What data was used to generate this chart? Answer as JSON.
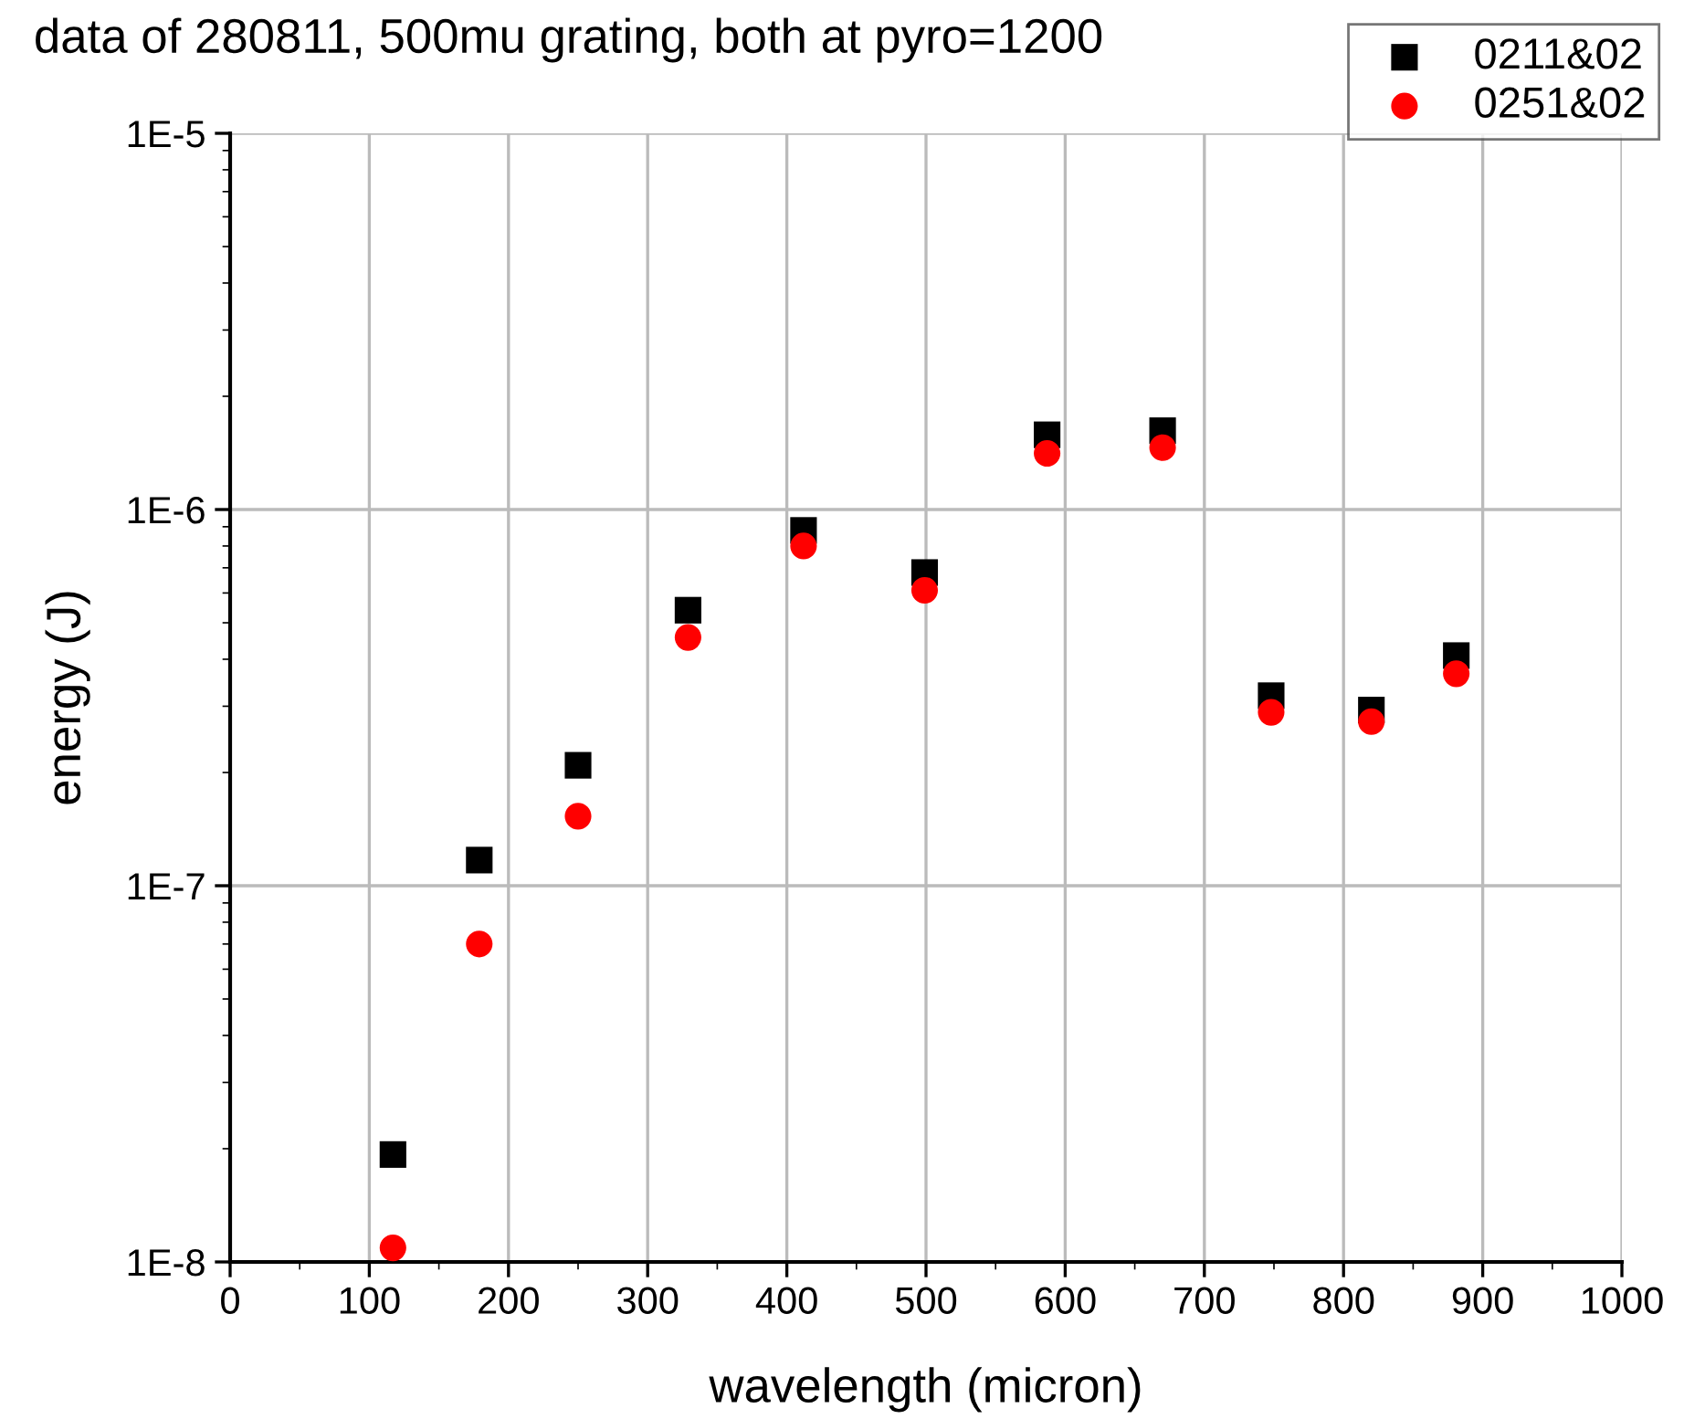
{
  "chart_data": {
    "type": "scatter",
    "title": "data of 280811, 500mu grating, both at pyro=1200",
    "xlabel": "wavelength (micron)",
    "ylabel": "energy (J)",
    "x": [
      117,
      179,
      250,
      329,
      412,
      499,
      587,
      670,
      748,
      820,
      881
    ],
    "series": [
      {
        "name": "0211&02",
        "color": "#000000",
        "marker": "square",
        "values": [
          1.93e-08,
          1.17e-07,
          2.09e-07,
          5.4e-07,
          8.8e-07,
          6.8e-07,
          1.58e-06,
          1.62e-06,
          3.2e-07,
          2.93e-07,
          4.09e-07
        ]
      },
      {
        "name": "0251&02",
        "color": "#ff0000",
        "marker": "circle",
        "values": [
          1.09e-08,
          7e-08,
          1.53e-07,
          4.57e-07,
          8e-07,
          6.1e-07,
          1.41e-06,
          1.46e-06,
          2.89e-07,
          2.73e-07,
          3.66e-07
        ]
      }
    ],
    "log": "y",
    "xlim": [
      0,
      1000
    ],
    "xticks": [
      0,
      100,
      200,
      300,
      400,
      500,
      600,
      700,
      800,
      900,
      1000
    ],
    "ylim": [
      1e-08,
      1e-05
    ],
    "yticks": [
      {
        "value": 1e-08,
        "label": "1E-8"
      },
      {
        "value": 1e-07,
        "label": "1E-7"
      },
      {
        "value": 1e-06,
        "label": "1E-6"
      },
      {
        "value": 1e-05,
        "label": "1E-5"
      }
    ],
    "grid": true,
    "legend": "top right"
  }
}
